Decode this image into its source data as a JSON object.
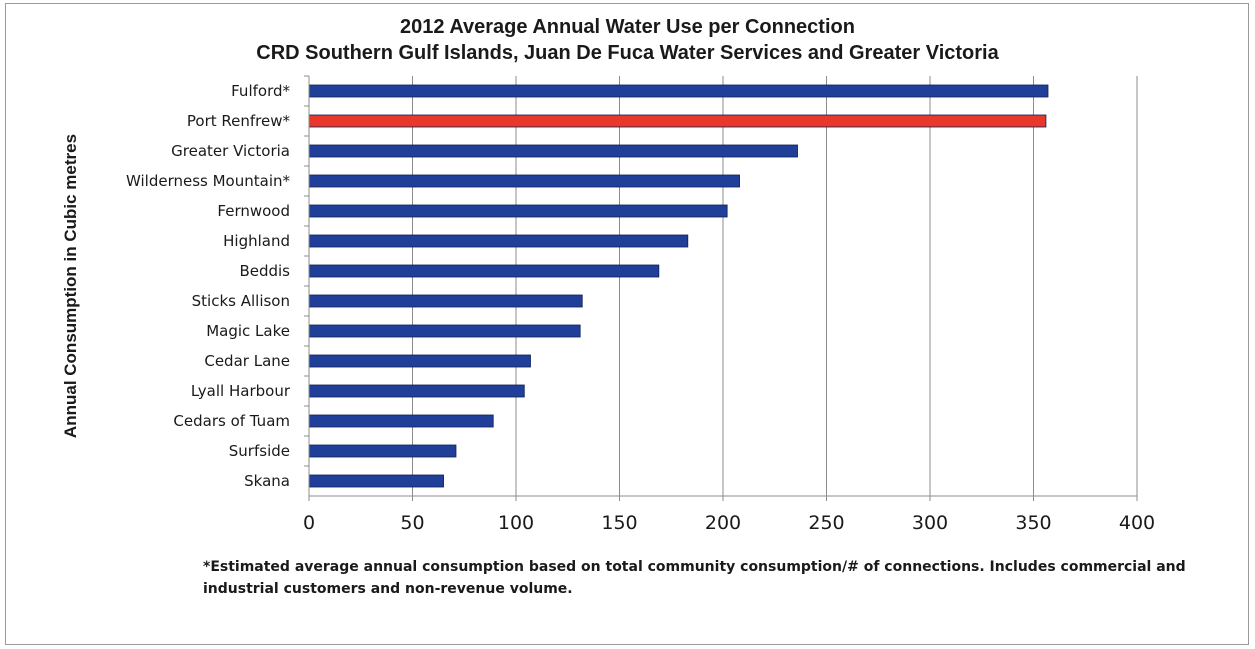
{
  "chart_data": {
    "type": "bar",
    "orientation": "horizontal",
    "title": "2012 Average Annual Water Use per Connection",
    "subtitle": "CRD Southern Gulf Islands, Juan De Fuca Water Services and Greater Victoria",
    "ylabel": "Annual Consumption in Cubic metres",
    "xlabel": "",
    "categories": [
      "Fulford*",
      "Port Renfrew*",
      "Greater Victoria",
      "Wilderness Mountain*",
      "Fernwood",
      "Highland",
      "Beddis",
      "Sticks Allison",
      "Magic Lake",
      "Cedar Lane",
      "Lyall Harbour",
      "Cedars of Tuam",
      "Surfside",
      "Skana"
    ],
    "values": [
      357,
      356,
      236,
      208,
      202,
      183,
      169,
      132,
      131,
      107,
      104,
      89,
      71,
      65
    ],
    "colors": [
      "#1f3f99",
      "#e8372b",
      "#1f3f99",
      "#1f3f99",
      "#1f3f99",
      "#1f3f99",
      "#1f3f99",
      "#1f3f99",
      "#1f3f99",
      "#1f3f99",
      "#1f3f99",
      "#1f3f99",
      "#1f3f99",
      "#1f3f99"
    ],
    "xlim": [
      0,
      400
    ],
    "xticks": [
      0,
      50,
      100,
      150,
      200,
      250,
      300,
      350,
      400
    ],
    "grid": true,
    "legend": "none"
  },
  "footnote": "*Estimated average annual consumption based on total community consumption/# of connections. Includes commercial and industrial customers and non-revenue volume."
}
